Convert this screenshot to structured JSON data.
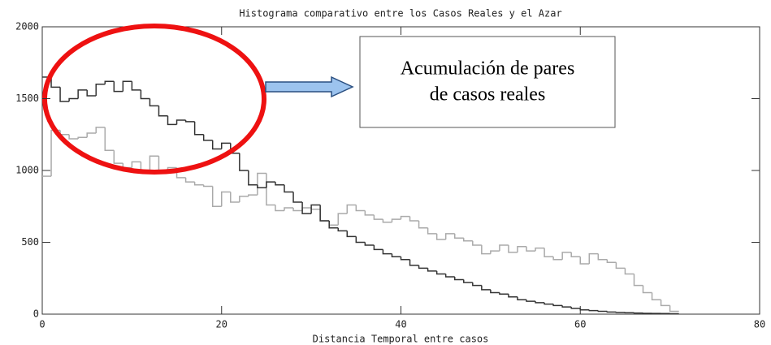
{
  "chart_data": {
    "type": "histogram",
    "title": "Histograma comparativo entre los Casos Reales y el Azar",
    "x_label": "Distancia Temporal entre casos",
    "annotation_lines": [
      "Acumulación de pares",
      "de casos reales"
    ],
    "bins": [
      0,
      1,
      2,
      3,
      4,
      5,
      6,
      7,
      8,
      9,
      10,
      11,
      12,
      13,
      14,
      15,
      16,
      17,
      18,
      19,
      20,
      21,
      22,
      23,
      24,
      25,
      26,
      27,
      28,
      29,
      30,
      31,
      32,
      33,
      34,
      35,
      36,
      37,
      38,
      39,
      40,
      41,
      42,
      43,
      44,
      45,
      46,
      47,
      48,
      49,
      50,
      51,
      52,
      53,
      54,
      55,
      56,
      57,
      58,
      59,
      60,
      61,
      62,
      63,
      64,
      65,
      66,
      67,
      68,
      69,
      70,
      71
    ],
    "series": [
      {
        "color": "#333333",
        "values": [
          1650,
          1580,
          1480,
          1500,
          1560,
          1520,
          1600,
          1620,
          1550,
          1620,
          1560,
          1500,
          1450,
          1380,
          1320,
          1350,
          1340,
          1250,
          1210,
          1150,
          1190,
          1120,
          1000,
          900,
          880,
          920,
          900,
          850,
          780,
          700,
          760,
          650,
          600,
          580,
          540,
          500,
          480,
          450,
          420,
          400,
          380,
          340,
          320,
          300,
          280,
          260,
          240,
          220,
          200,
          170,
          150,
          140,
          120,
          100,
          90,
          80,
          70,
          60,
          50,
          40,
          30,
          25,
          20,
          15,
          12,
          10,
          8,
          6,
          5,
          4,
          3
        ]
      },
      {
        "color": "#aaaaaa",
        "values": [
          960,
          1280,
          1250,
          1220,
          1230,
          1260,
          1300,
          1140,
          1050,
          1020,
          1060,
          1000,
          1100,
          1000,
          1020,
          950,
          920,
          900,
          890,
          750,
          850,
          780,
          820,
          830,
          980,
          760,
          720,
          740,
          720,
          740,
          730,
          650,
          620,
          700,
          760,
          720,
          690,
          660,
          640,
          660,
          680,
          650,
          600,
          560,
          520,
          560,
          530,
          510,
          480,
          420,
          440,
          480,
          430,
          470,
          440,
          460,
          400,
          380,
          430,
          400,
          350,
          420,
          380,
          360,
          320,
          280,
          200,
          150,
          100,
          60,
          20
        ]
      }
    ],
    "xlim": [
      0,
      80
    ],
    "xticks": [
      0,
      20,
      40,
      60,
      80
    ],
    "ylim": [
      0,
      2000
    ],
    "yticks": [
      0,
      500,
      1000,
      1500,
      2000
    ]
  }
}
